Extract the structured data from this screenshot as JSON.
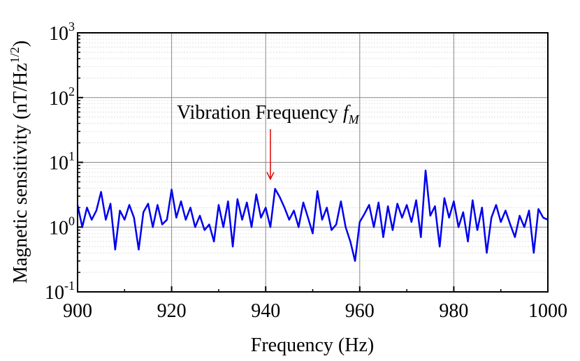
{
  "chart_data": {
    "type": "line",
    "xlabel": "Frequency (Hz)",
    "ylabel": {
      "text": "Magnetic sensitivity (nT/Hz",
      "sup": "1/2",
      "end": ")"
    },
    "annotation": {
      "text": "Vibration Frequency ",
      "symbol": "f",
      "subscript": "M",
      "x": 941,
      "y": 5.5
    },
    "log_y": true,
    "grid": true,
    "xlim": [
      900,
      1000
    ],
    "xticks": [
      900,
      920,
      940,
      960,
      980,
      1000
    ],
    "xminor": [
      910,
      930,
      950,
      970,
      990
    ],
    "ylim": [
      0.1,
      1000
    ],
    "yticks": [
      {
        "value": 0.1,
        "label": "10",
        "exponent": "-1"
      },
      {
        "value": 1,
        "label": "10",
        "exponent": "0"
      },
      {
        "value": 10,
        "label": "10",
        "exponent": "1"
      },
      {
        "value": 100,
        "label": "10",
        "exponent": "2"
      },
      {
        "value": 1000,
        "label": "10",
        "exponent": "3"
      }
    ],
    "x": [
      900,
      901,
      902,
      903,
      904,
      905,
      906,
      907,
      908,
      909,
      910,
      911,
      912,
      913,
      914,
      915,
      916,
      917,
      918,
      919,
      920,
      921,
      922,
      923,
      924,
      925,
      926,
      927,
      928,
      929,
      930,
      931,
      932,
      933,
      934,
      935,
      936,
      937,
      938,
      939,
      940,
      941,
      942,
      943,
      944,
      945,
      946,
      947,
      948,
      949,
      950,
      951,
      952,
      953,
      954,
      955,
      956,
      957,
      958,
      959,
      960,
      961,
      962,
      963,
      964,
      965,
      966,
      967,
      968,
      969,
      970,
      971,
      972,
      973,
      974,
      975,
      976,
      977,
      978,
      979,
      980,
      981,
      982,
      983,
      984,
      985,
      986,
      987,
      988,
      989,
      990,
      991,
      992,
      993,
      994,
      995,
      996,
      997,
      998,
      999,
      1000
    ],
    "series": [
      {
        "color": "#0000ee",
        "values": [
          2.2,
          1.0,
          2.0,
          1.3,
          1.8,
          3.5,
          1.3,
          2.3,
          0.45,
          1.8,
          1.3,
          2.2,
          1.4,
          0.45,
          1.7,
          2.3,
          1.0,
          2.2,
          1.1,
          1.3,
          3.8,
          1.4,
          2.5,
          1.3,
          2.0,
          1.0,
          1.5,
          0.9,
          1.1,
          0.6,
          2.2,
          1.0,
          2.5,
          0.5,
          2.7,
          1.3,
          2.4,
          1.0,
          3.2,
          1.4,
          2.0,
          1.0,
          3.9,
          2.9,
          2.0,
          1.3,
          1.8,
          1.0,
          2.4,
          1.4,
          0.8,
          3.6,
          1.3,
          2.0,
          0.9,
          1.1,
          2.5,
          1.0,
          0.6,
          0.3,
          1.2,
          1.6,
          2.2,
          1.0,
          2.4,
          0.7,
          2.1,
          0.9,
          2.3,
          1.4,
          2.2,
          1.2,
          2.6,
          0.7,
          7.5,
          1.5,
          2.1,
          0.5,
          2.8,
          1.4,
          2.5,
          1.0,
          1.7,
          0.6,
          2.6,
          0.9,
          2.0,
          0.4,
          1.4,
          2.2,
          1.2,
          1.8,
          1.1,
          0.7,
          1.5,
          1.0,
          1.8,
          0.4,
          1.9,
          1.4,
          1.3
        ]
      }
    ]
  }
}
